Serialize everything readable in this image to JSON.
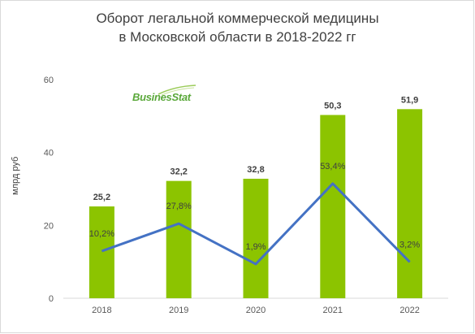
{
  "chart_data": {
    "type": "bar",
    "title_lines": [
      "Оборот легальной коммерческой медицины",
      "в Московской области в 2018-2022 гг"
    ],
    "ylabel": "млрд руб",
    "categories": [
      "2018",
      "2019",
      "2020",
      "2021",
      "2022"
    ],
    "series": [
      {
        "type": "bar",
        "values": [
          25.2,
          32.2,
          32.8,
          50.3,
          51.9
        ],
        "labels": [
          "25,2",
          "32,2",
          "32,8",
          "50,3",
          "51,9"
        ],
        "color": "#8cc400"
      },
      {
        "type": "line",
        "values": [
          10.2,
          27.8,
          1.9,
          53.4,
          3.2
        ],
        "labels": [
          "10,2%",
          "27,8%",
          "1,9%",
          "53,4%",
          "3,2%"
        ],
        "color": "#4472c4"
      }
    ],
    "yticks": [
      "0",
      "20",
      "40",
      "60"
    ],
    "ylim": [
      0,
      60
    ],
    "growth_ylim": [
      -20,
      120
    ],
    "grid": false,
    "logo_text": "BusinesStat"
  }
}
